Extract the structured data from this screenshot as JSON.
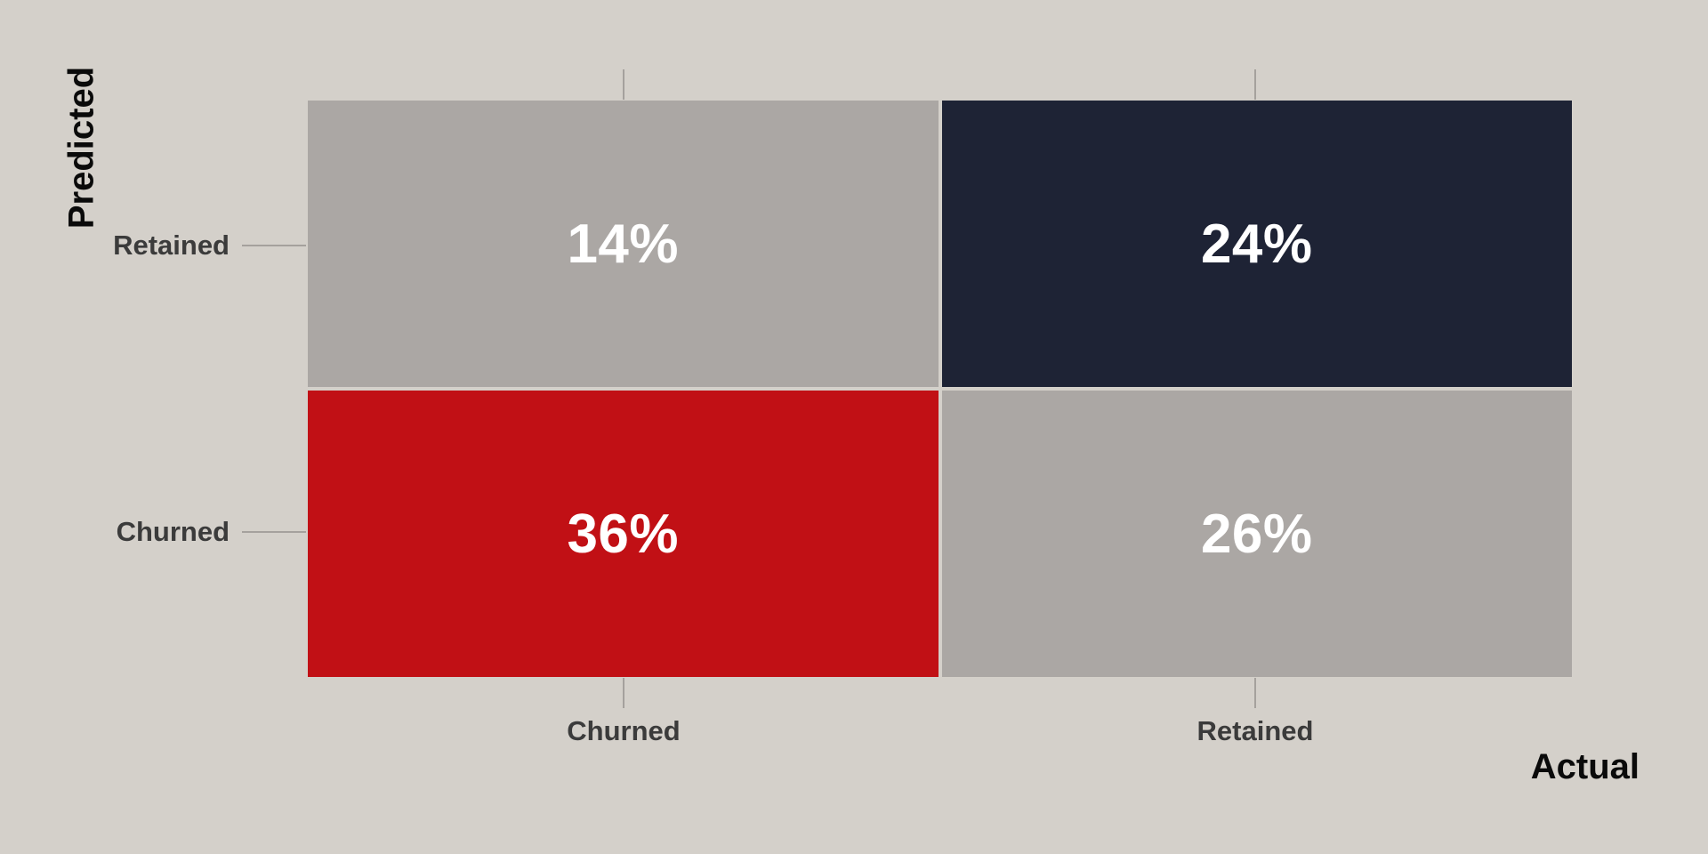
{
  "chart_data": {
    "type": "heatmap",
    "subtype": "confusion-matrix",
    "title": "",
    "xlabel": "Actual",
    "ylabel": "Predicted",
    "x_categories": [
      "Churned",
      "Retained"
    ],
    "y_categories": [
      "Retained",
      "Churned"
    ],
    "legend": "none",
    "grid": "off",
    "cells": [
      {
        "row": "Retained",
        "col": "Churned",
        "number": 14,
        "value": "14%",
        "color": "#aba7a4"
      },
      {
        "row": "Retained",
        "col": "Retained",
        "number": 24,
        "value": "24%",
        "color": "#1e2335"
      },
      {
        "row": "Churned",
        "col": "Churned",
        "number": 36,
        "value": "36%",
        "color": "#c11015"
      },
      {
        "row": "Churned",
        "col": "Retained",
        "number": 26,
        "value": "26%",
        "color": "#aba7a4"
      }
    ]
  },
  "colors": {
    "background": "#d4d0ca",
    "tick_line": "#a5a19d",
    "tick_label": "#3b3b3b",
    "axis_title": "#0a0a0a",
    "cell_text": "#ffffff"
  }
}
